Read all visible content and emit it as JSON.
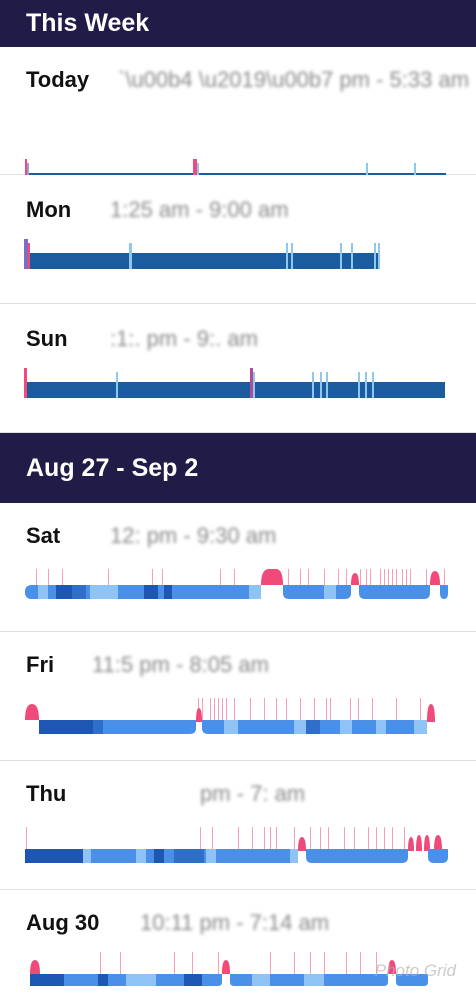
{
  "sections": [
    {
      "title": "This Week",
      "days": [
        {
          "label": "Today",
          "time_range": "`\\u00b4 \\u2019\\u00b7 pm - 5:33 am",
          "graph": "simple"
        },
        {
          "label": "Mon",
          "time_range": "1:25 am - 9:00 am",
          "graph": "simple"
        },
        {
          "label": "Sun",
          "time_range": ":1:.  pm - 9:.  am",
          "graph": "simple"
        }
      ]
    },
    {
      "title": "Aug 27 - Sep 2",
      "days": [
        {
          "label": "Sat",
          "time_range": "12:  pm - 9:30 am",
          "graph": "stages"
        },
        {
          "label": "Fri",
          "time_range": "11:5 pm - 8:05 am",
          "graph": "stages"
        },
        {
          "label": "Thu",
          "time_range": "pm - 7:   am",
          "graph": "stages"
        },
        {
          "label": "Aug 30",
          "time_range": "10:11 pm - 7:14 am",
          "graph": "stages"
        }
      ]
    }
  ],
  "colors": {
    "header_bg": "#211b47",
    "simple_bar": "#1a5c9e",
    "simple_bar_light": "#8fc8ef",
    "awake": "#ef4a7a",
    "deep": "#1e56b4",
    "light": "#4a90e8",
    "rem": "#8fc2f5",
    "restless_marker": "#f4a0b6"
  },
  "watermark": "Photo Grid"
}
